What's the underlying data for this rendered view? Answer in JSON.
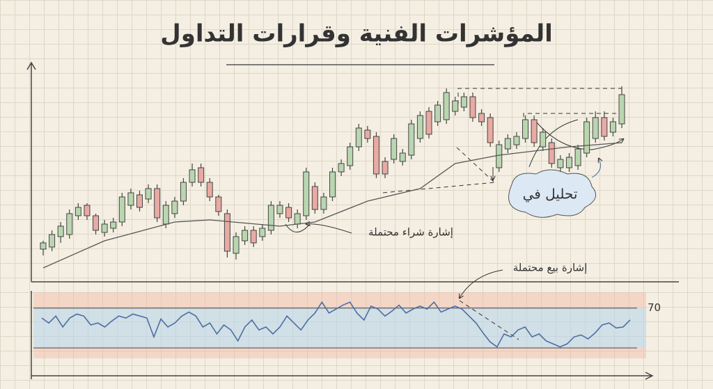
{
  "chart_data": [
    {
      "type": "candlestick",
      "title": "المؤشرات الفنية وقرارات التداول",
      "annotation": "إشارة شراء محتملة",
      "cloud_label": "تحليل في",
      "up_color": "#b9d6b0",
      "down_color": "#e8aaa4",
      "ylim": [
        0,
        100
      ],
      "open": [
        14,
        15,
        20,
        21,
        30,
        35,
        30,
        22,
        24,
        27,
        35,
        40,
        38,
        43,
        26,
        31,
        37,
        46,
        53,
        46,
        39,
        31,
        12,
        18,
        23,
        20,
        23,
        31,
        34,
        26,
        30,
        44,
        33,
        39,
        51,
        54,
        63,
        71,
        68,
        56,
        57,
        56,
        59,
        67,
        80,
        75,
        76,
        80,
        82,
        87,
        79,
        77,
        53,
        62,
        64,
        67,
        76,
        63,
        65,
        53,
        53,
        54,
        60,
        67,
        77,
        70,
        74
      ],
      "high": [
        18,
        23,
        27,
        33,
        36,
        36,
        31,
        28,
        29,
        41,
        43,
        42,
        45,
        45,
        37,
        39,
        48,
        55,
        55,
        48,
        40,
        33,
        22,
        25,
        25,
        26,
        37,
        37,
        36,
        33,
        53,
        46,
        41,
        53,
        57,
        65,
        74,
        73,
        70,
        58,
        69,
        62,
        76,
        80,
        82,
        85,
        91,
        87,
        89,
        89,
        81,
        79,
        66,
        69,
        70,
        78,
        78,
        72,
        67,
        59,
        60,
        64,
        77,
        80,
        80,
        77,
        92
      ],
      "low": [
        11,
        13,
        17,
        19,
        28,
        28,
        21,
        20,
        22,
        25,
        33,
        32,
        36,
        27,
        24,
        29,
        35,
        44,
        44,
        37,
        30,
        10,
        9,
        16,
        15,
        18,
        21,
        29,
        27,
        24,
        28,
        31,
        31,
        37,
        49,
        52,
        61,
        65,
        48,
        48,
        55,
        54,
        57,
        65,
        67,
        73,
        74,
        78,
        80,
        75,
        73,
        63,
        51,
        60,
        62,
        65,
        63,
        61,
        53,
        51,
        51,
        52,
        58,
        65,
        66,
        68,
        72
      ],
      "close": [
        17,
        21,
        25,
        31,
        34,
        30,
        23,
        26,
        27,
        39,
        41,
        34,
        43,
        29,
        35,
        37,
        46,
        52,
        46,
        39,
        32,
        13,
        20,
        23,
        17,
        24,
        35,
        35,
        29,
        31,
        51,
        33,
        39,
        51,
        55,
        63,
        72,
        67,
        50,
        50,
        67,
        60,
        74,
        78,
        69,
        83,
        89,
        85,
        87,
        77,
        75,
        65,
        64,
        67,
        68,
        76,
        65,
        70,
        55,
        57,
        58,
        62,
        75,
        77,
        68,
        75,
        88
      ],
      "ma": {
        "color": "#555",
        "x": [
          0,
          7,
          15,
          19,
          27,
          31,
          37,
          43,
          47,
          52,
          60,
          66
        ],
        "values": [
          5,
          18,
          27,
          28,
          25,
          27,
          37,
          43,
          55,
          59,
          63,
          65
        ]
      }
    },
    {
      "type": "line",
      "annotation": "إشارة بيع محتملة",
      "color": "#4a6fa5",
      "ylim": [
        5,
        88
      ],
      "yticks": [
        70
      ],
      "values": [
        60,
        55,
        62,
        51,
        60,
        64,
        62,
        53,
        55,
        51,
        57,
        62,
        60,
        64,
        62,
        60,
        41,
        59,
        51,
        55,
        62,
        66,
        62,
        51,
        55,
        44,
        53,
        48,
        37,
        51,
        58,
        48,
        51,
        44,
        51,
        62,
        55,
        48,
        58,
        65,
        76,
        65,
        69,
        73,
        76,
        65,
        58,
        72,
        69,
        62,
        67,
        73,
        65,
        69,
        72,
        69,
        76,
        66,
        69,
        72,
        69,
        62,
        55,
        45,
        36,
        31,
        44,
        41,
        48,
        51,
        41,
        44,
        37,
        34,
        31,
        34,
        41,
        43,
        39,
        45,
        53,
        55,
        50,
        51,
        58
      ]
    }
  ]
}
